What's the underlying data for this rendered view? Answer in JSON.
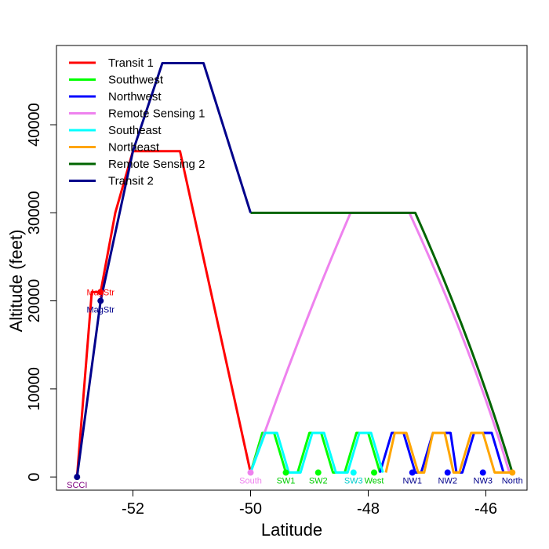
{
  "chart_data": {
    "type": "line",
    "title": "",
    "xlabel": "Latitude",
    "ylabel": "Altitude (feet)",
    "xlim": [
      -53.3,
      -45.3
    ],
    "ylim": [
      -1500,
      49000
    ],
    "xticks": [
      -52,
      -50,
      -48,
      -46
    ],
    "yticks": [
      0,
      10000,
      20000,
      30000,
      40000
    ],
    "legend_position": "top-left",
    "series": [
      {
        "name": "Transit 1",
        "color": "#ff0000",
        "points": [
          [
            -52.95,
            0
          ],
          [
            -52.7,
            21000
          ],
          [
            -52.55,
            21000
          ],
          [
            -52.3,
            30000
          ],
          [
            -52,
            37000
          ],
          [
            -51.2,
            37000
          ],
          [
            -50,
            500
          ]
        ]
      },
      {
        "name": "Southwest",
        "color": "#00ff00",
        "points": [
          [
            -50,
            500
          ],
          [
            -49.8,
            5000
          ],
          [
            -49.6,
            5000
          ],
          [
            -49.4,
            500
          ],
          [
            -49.2,
            500
          ],
          [
            -49,
            5000
          ],
          [
            -48.8,
            5000
          ],
          [
            -48.6,
            500
          ],
          [
            -48.4,
            500
          ],
          [
            -48.2,
            5000
          ],
          [
            -48,
            5000
          ],
          [
            -47.8,
            500
          ]
        ]
      },
      {
        "name": "Northwest",
        "color": "#0000ff",
        "points": [
          [
            -47.8,
            500
          ],
          [
            -47.6,
            5000
          ],
          [
            -47.4,
            5000
          ],
          [
            -47.2,
            500
          ],
          [
            -47.1,
            500
          ],
          [
            -46.9,
            5000
          ],
          [
            -46.6,
            5000
          ],
          [
            -46.5,
            500
          ],
          [
            -46.4,
            500
          ],
          [
            -46.2,
            5000
          ],
          [
            -45.9,
            5000
          ],
          [
            -45.7,
            500
          ],
          [
            -45.5,
            500
          ]
        ]
      },
      {
        "name": "Remote Sensing 1",
        "color": "#ee82ee",
        "curve": "remote1",
        "points": [
          [
            -50,
            500
          ],
          [
            -48.3,
            30000
          ],
          [
            -47.3,
            30000
          ],
          [
            -45.6,
            500
          ]
        ]
      },
      {
        "name": "Southeast",
        "color": "#00ffff",
        "points": [
          [
            -50,
            500
          ],
          [
            -49.75,
            5000
          ],
          [
            -49.55,
            5000
          ],
          [
            -49.35,
            500
          ],
          [
            -49.15,
            500
          ],
          [
            -48.95,
            5000
          ],
          [
            -48.75,
            5000
          ],
          [
            -48.55,
            500
          ],
          [
            -48.35,
            500
          ],
          [
            -48.15,
            5000
          ],
          [
            -47.95,
            5000
          ],
          [
            -47.75,
            500
          ]
        ]
      },
      {
        "name": "Northeast",
        "color": "#ffa500",
        "points": [
          [
            -47.7,
            500
          ],
          [
            -47.55,
            5000
          ],
          [
            -47.35,
            5000
          ],
          [
            -47.15,
            500
          ],
          [
            -47.05,
            500
          ],
          [
            -46.9,
            5000
          ],
          [
            -46.7,
            5000
          ],
          [
            -46.55,
            500
          ],
          [
            -46.45,
            500
          ],
          [
            -46.25,
            5000
          ],
          [
            -46.05,
            5000
          ],
          [
            -45.85,
            500
          ],
          [
            -45.5,
            500
          ]
        ]
      },
      {
        "name": "Remote Sensing 2",
        "color": "#006400",
        "curve": "remote2",
        "points": [
          [
            -50,
            30000
          ],
          [
            -47.2,
            30000
          ],
          [
            -45.55,
            500
          ]
        ]
      },
      {
        "name": "Transit 2",
        "color": "#00008b",
        "points": [
          [
            -52.95,
            0
          ],
          [
            -52.55,
            20000
          ],
          [
            -52,
            37000
          ],
          [
            -51.5,
            47000
          ],
          [
            -50.8,
            47000
          ],
          [
            -50,
            30000
          ]
        ]
      }
    ],
    "markers": [
      {
        "label": "SCCI",
        "x": -52.95,
        "y": 0,
        "color": "#00008b",
        "text_color": "#800080",
        "label_pos": "below"
      },
      {
        "label": "MagStr",
        "x": -52.55,
        "y": 21000,
        "color": "#ff0000",
        "text_color": "#ff0000",
        "label_pos": "below"
      },
      {
        "label": "MagStr",
        "x": -52.55,
        "y": 20000,
        "color": "#00008b",
        "text_color": "#00008b",
        "label_pos": "below-far"
      },
      {
        "label": "South",
        "x": -50,
        "y": 500,
        "color": "#ee82ee",
        "text_color": "#ee82ee",
        "label_pos": "below"
      },
      {
        "label": "SW1",
        "x": -49.4,
        "y": 500,
        "color": "#00ff00",
        "text_color": "#00cc00",
        "label_pos": "below"
      },
      {
        "label": "SW2",
        "x": -48.85,
        "y": 500,
        "color": "#00ff00",
        "text_color": "#00cc00",
        "label_pos": "below"
      },
      {
        "label": "SW3",
        "x": -48.25,
        "y": 500,
        "color": "#00ffff",
        "text_color": "#00cccc",
        "label_pos": "below"
      },
      {
        "label": "West",
        "x": -47.9,
        "y": 500,
        "color": "#00ff00",
        "text_color": "#00cc00",
        "label_pos": "below"
      },
      {
        "label": "NW1",
        "x": -47.25,
        "y": 500,
        "color": "#0000ff",
        "text_color": "#00008b",
        "label_pos": "below"
      },
      {
        "label": "NW2",
        "x": -46.65,
        "y": 500,
        "color": "#0000ff",
        "text_color": "#00008b",
        "label_pos": "below"
      },
      {
        "label": "NW3",
        "x": -46.05,
        "y": 500,
        "color": "#0000ff",
        "text_color": "#00008b",
        "label_pos": "below"
      },
      {
        "label": "North",
        "x": -45.55,
        "y": 500,
        "color": "#ffa500",
        "text_color": "#00008b",
        "label_pos": "below"
      }
    ]
  }
}
